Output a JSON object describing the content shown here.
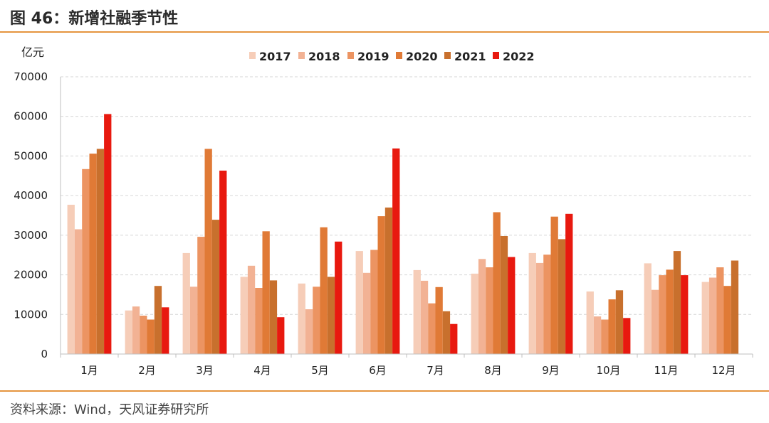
{
  "header": {
    "title": "图 46：新增社融季节性"
  },
  "footer": {
    "source": "资料来源：Wind，天风证券研究所"
  },
  "chart_data": {
    "type": "bar",
    "ylabel": "亿元",
    "ylim": [
      0,
      70000
    ],
    "yticks": [
      0,
      10000,
      20000,
      30000,
      40000,
      50000,
      60000,
      70000
    ],
    "grid": true,
    "legend_position": "top",
    "categories": [
      "1月",
      "2月",
      "3月",
      "4月",
      "5月",
      "6月",
      "7月",
      "8月",
      "9月",
      "10月",
      "11月",
      "12月"
    ],
    "series": [
      {
        "name": "2017",
        "color": "#f6cdb8",
        "values": [
          37700,
          11000,
          25500,
          19500,
          17800,
          26000,
          21200,
          20300,
          25500,
          15800,
          22900,
          18200
        ]
      },
      {
        "name": "2018",
        "color": "#f2b294",
        "values": [
          31500,
          12000,
          17000,
          22300,
          11300,
          20500,
          18500,
          24000,
          23000,
          9500,
          16200,
          19300
        ]
      },
      {
        "name": "2019",
        "color": "#ec9462",
        "values": [
          46700,
          9700,
          29600,
          16700,
          17000,
          26300,
          12800,
          21900,
          25100,
          8700,
          19900,
          21900
        ]
      },
      {
        "name": "2020",
        "color": "#e07a36",
        "values": [
          50600,
          8700,
          51800,
          31000,
          32000,
          34800,
          16900,
          35800,
          34700,
          13800,
          21300,
          17200
        ]
      },
      {
        "name": "2021",
        "color": "#c8702d",
        "values": [
          51800,
          17200,
          33900,
          18600,
          19500,
          37000,
          10800,
          29800,
          29000,
          16100,
          26000,
          23600
        ]
      },
      {
        "name": "2022",
        "color": "#e8190f",
        "values": [
          60600,
          11800,
          46300,
          9300,
          28400,
          51900,
          7600,
          24500,
          35400,
          9100,
          19900,
          null
        ]
      }
    ]
  }
}
